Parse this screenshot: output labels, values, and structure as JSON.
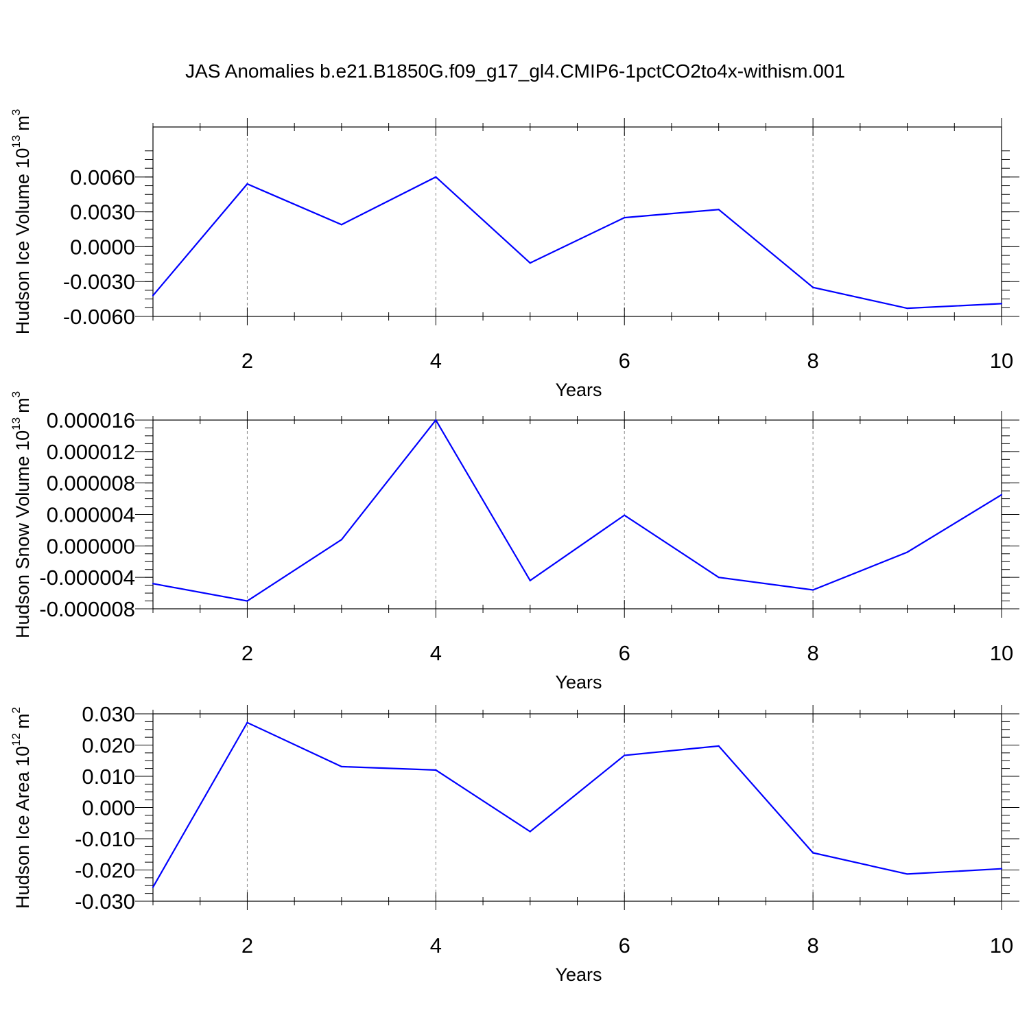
{
  "figure_title": "JAS Anomalies b.e21.B1850G.f09_g17_gl4.CMIP6-1pctCO2to4x-withism.001",
  "line_color": "#0000ff",
  "chart_data": [
    {
      "type": "line",
      "title": "JAS Anomalies b.e21.B1850G.f09_g17_gl4.CMIP6-1pctCO2to4x-withism.001",
      "xlabel": "Years",
      "ylabel": "Hudson Ice Volume 10",
      "ylabel_exp": "13",
      "ylabel_unit": "m",
      "ylabel_unit_exp": "3",
      "xlim": [
        1,
        10
      ],
      "ylim": [
        -0.006,
        0.008
      ],
      "x_ticks": [
        2,
        4,
        6,
        8,
        10
      ],
      "x_tick_labels": [
        "2",
        "4",
        "6",
        "8",
        "10"
      ],
      "y_ticks": [
        -0.006,
        -0.003,
        0.0,
        0.003,
        0.006
      ],
      "y_tick_labels": [
        "-0.0060",
        "-0.0030",
        "0.0000",
        "0.0030",
        "0.0060"
      ],
      "y_minor_step": 0.00075,
      "grid": "dashed vertical at major x ticks",
      "series": [
        {
          "x": [
            1,
            2,
            3,
            4,
            5,
            6,
            7,
            8,
            9,
            10
          ],
          "values": [
            -0.0042,
            0.0054,
            0.0019,
            0.006,
            -0.0014,
            0.0025,
            0.0032,
            -0.0035,
            -0.0053,
            -0.0049
          ]
        }
      ]
    },
    {
      "type": "line",
      "title": "",
      "xlabel": "Years",
      "ylabel": "Hudson Snow Volume 10",
      "ylabel_exp": "13",
      "ylabel_unit": "m",
      "ylabel_unit_exp": "3",
      "xlim": [
        1,
        10
      ],
      "ylim": [
        -8e-06,
        1.6e-05
      ],
      "x_ticks": [
        2,
        4,
        6,
        8,
        10
      ],
      "x_tick_labels": [
        "2",
        "4",
        "6",
        "8",
        "10"
      ],
      "y_ticks": [
        -8e-06,
        -4e-06,
        0.0,
        4e-06,
        8e-06,
        1.2e-05,
        1.6e-05
      ],
      "y_tick_labels": [
        "-0.000008",
        "-0.000004",
        "0.000000",
        "0.000004",
        "0.000008",
        "0.000012",
        "0.000016"
      ],
      "y_minor_step": 1e-06,
      "grid": "dashed vertical at major x ticks",
      "series": [
        {
          "x": [
            1,
            2,
            3,
            4,
            5,
            6,
            7,
            8,
            9,
            10
          ],
          "values": [
            -4.8e-06,
            -7e-06,
            8e-07,
            1.6e-05,
            -4.4e-06,
            3.9e-06,
            -4e-06,
            -5.6e-06,
            -8e-07,
            6.5e-06
          ]
        }
      ]
    },
    {
      "type": "line",
      "title": "",
      "xlabel": "Years",
      "ylabel": "Hudson Ice Area 10",
      "ylabel_exp": "12",
      "ylabel_unit": "m",
      "ylabel_unit_exp": "2",
      "xlim": [
        1,
        10
      ],
      "ylim": [
        -0.03,
        0.03
      ],
      "x_ticks": [
        2,
        4,
        6,
        8,
        10
      ],
      "x_tick_labels": [
        "2",
        "4",
        "6",
        "8",
        "10"
      ],
      "y_ticks": [
        -0.03,
        -0.02,
        -0.01,
        0.0,
        0.01,
        0.02,
        0.03
      ],
      "y_tick_labels": [
        "-0.030",
        "-0.020",
        "-0.010",
        "0.000",
        "0.010",
        "0.020",
        "0.030"
      ],
      "y_minor_step": 0.0025,
      "grid": "dashed vertical at major x ticks",
      "series": [
        {
          "x": [
            1,
            2,
            3,
            4,
            5,
            6,
            7,
            8,
            9,
            10
          ],
          "values": [
            -0.0255,
            0.0272,
            0.0131,
            0.012,
            -0.0077,
            0.0167,
            0.0197,
            -0.0145,
            -0.0213,
            -0.0196
          ]
        }
      ]
    }
  ]
}
